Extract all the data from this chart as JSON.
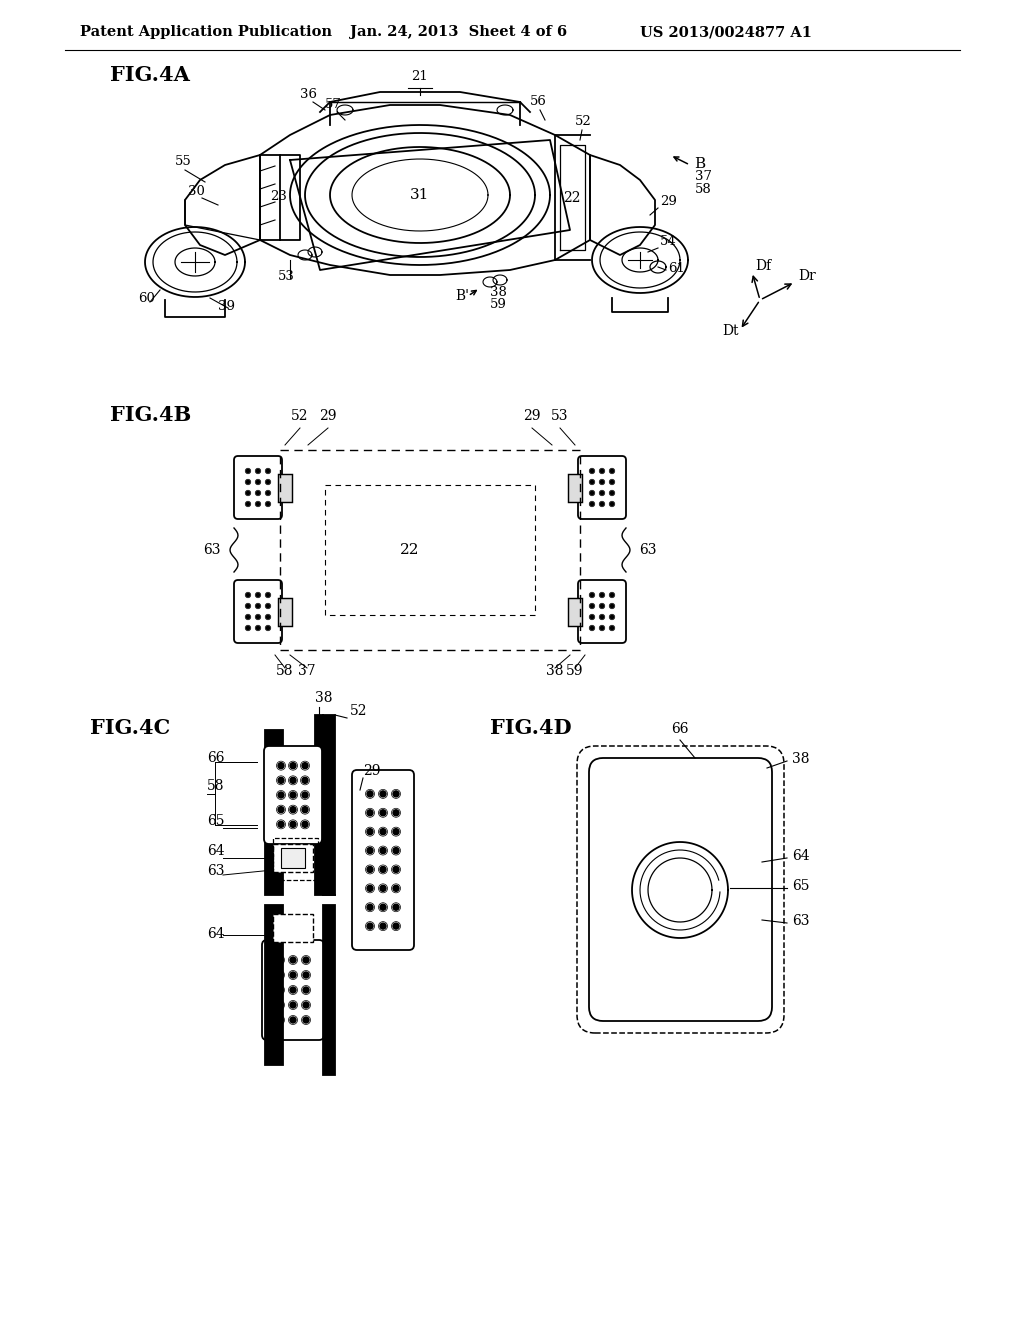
{
  "bg_color": "#ffffff",
  "header_left": "Patent Application Publication",
  "header_mid": "Jan. 24, 2013  Sheet 4 of 6",
  "header_right": "US 2013/0024877 A1"
}
